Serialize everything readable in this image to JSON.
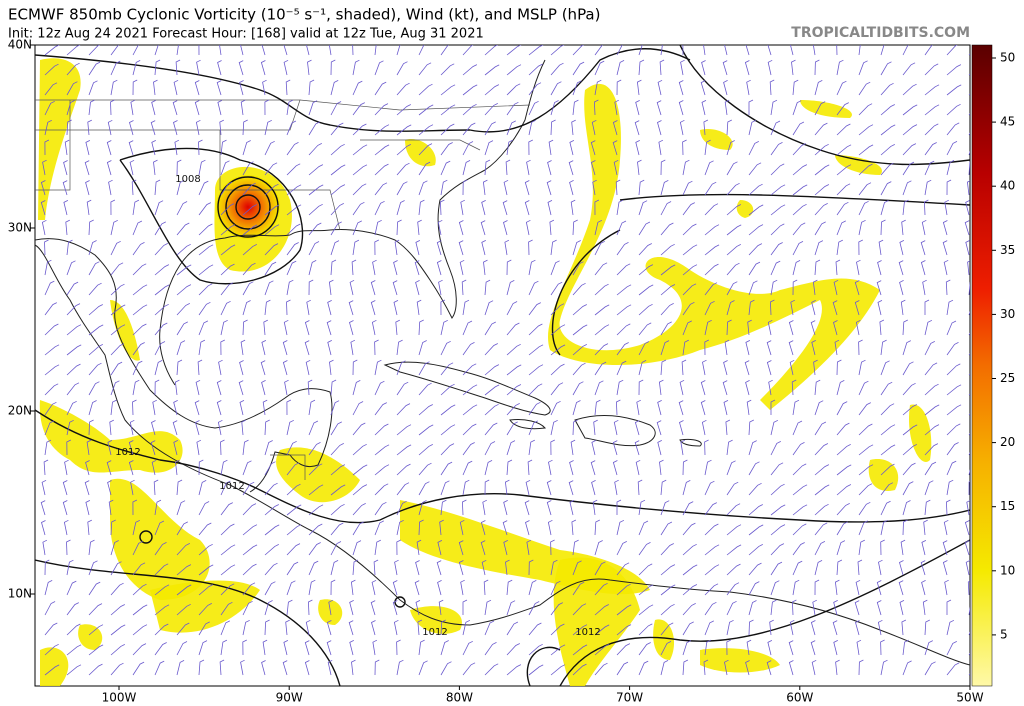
{
  "header": {
    "title": "ECMWF 850mb Cyclonic Vorticity (10⁻⁵ s⁻¹, shaded), Wind (kt), and MSLP (hPa)",
    "subtitle": "Init: 12z Aug 24 2021   Forecast Hour: [168]   valid at 12z Tue, Aug 31 2021",
    "source": "TROPICALTIDBITS.COM"
  },
  "map": {
    "lat_labels": [
      "40N",
      "30N",
      "20N",
      "10N"
    ],
    "lon_labels": [
      "100W",
      "90W",
      "80W",
      "70W",
      "60W",
      "50W"
    ],
    "isobar_labels": [
      "1008",
      "1012",
      "1012",
      "1012",
      "1012"
    ]
  },
  "colorbar": {
    "ticks": [
      5,
      10,
      15,
      20,
      25,
      30,
      35,
      40,
      45,
      50
    ]
  }
}
